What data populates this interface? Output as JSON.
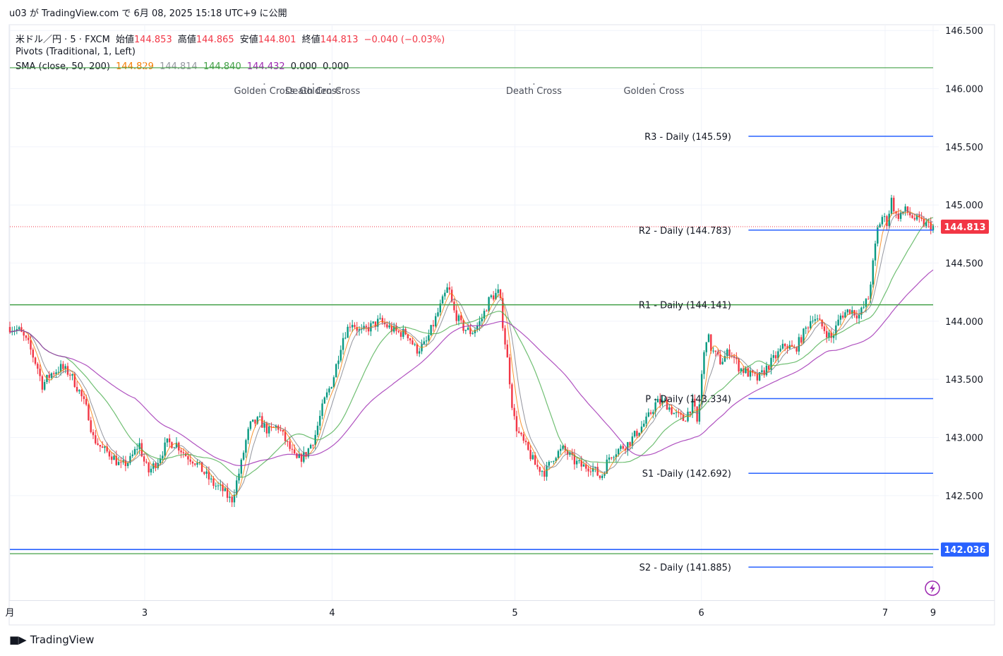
{
  "header": {
    "publisher_line": "u03 が TradingView.com で 6月 08, 2025 15:18 UTC+9 に公開"
  },
  "legend": {
    "symbol": "米ドル／円 · 5 · FXCM",
    "open_label": "始値",
    "open_value": "144.853",
    "high_label": "高値",
    "high_value": "144.865",
    "low_label": "安値",
    "low_value": "144.801",
    "close_label": "終値",
    "close_value": "144.813",
    "change": "−0.040 (−0.03%)",
    "pivots": "Pivots (Traditional, 1, Left)",
    "sma_label": "SMA (close, 50, 200)",
    "sma_values": [
      "144.829",
      "144.814",
      "144.840",
      "144.432",
      "0.000",
      "0.000"
    ]
  },
  "colors": {
    "up": "#089981",
    "down": "#f23645",
    "sma_fast": "#f57c00",
    "sma_slow": "#787b86",
    "sma50": "#4caf50",
    "sma200": "#9c27b0",
    "pivot_blue": "#2962ff",
    "pivot_green": "#43a047",
    "price_tag": "#f23645"
  },
  "footer": {
    "brand": "TradingView",
    "logo_icon": "tradingview-logo-icon"
  },
  "chart_data": {
    "type": "candlestick",
    "instrument": "米ドル／円 · 5 · FXCM",
    "ylim": [
      141.6,
      146.55
    ],
    "y_ticks": [
      "146.500",
      "146.000",
      "145.500",
      "145.000",
      "144.500",
      "144.000",
      "143.500",
      "143.000",
      "142.500"
    ],
    "x_ticks": [
      {
        "label": "月",
        "x": 0
      },
      {
        "label": "3",
        "x": 0.146
      },
      {
        "label": "4",
        "x": 0.349
      },
      {
        "label": "5",
        "x": 0.547
      },
      {
        "label": "6",
        "x": 0.749
      },
      {
        "label": "7",
        "x": 0.948
      },
      {
        "label": "9",
        "x": 1.0
      }
    ],
    "last_price": 144.813,
    "last_price_label": "144.813",
    "level_label": "142.036",
    "level_value": 142.036,
    "price_path": [
      [
        0,
        143.95
      ],
      [
        0.01,
        143.92
      ],
      [
        0.02,
        143.8
      ],
      [
        0.03,
        143.6
      ],
      [
        0.035,
        143.45
      ],
      [
        0.045,
        143.55
      ],
      [
        0.055,
        143.6
      ],
      [
        0.065,
        143.55
      ],
      [
        0.075,
        143.4
      ],
      [
        0.085,
        143.2
      ],
      [
        0.09,
        143.0
      ],
      [
        0.1,
        142.9
      ],
      [
        0.11,
        142.85
      ],
      [
        0.12,
        142.75
      ],
      [
        0.13,
        142.8
      ],
      [
        0.14,
        142.95
      ],
      [
        0.145,
        142.8
      ],
      [
        0.15,
        142.7
      ],
      [
        0.16,
        142.8
      ],
      [
        0.17,
        142.95
      ],
      [
        0.18,
        142.95
      ],
      [
        0.19,
        142.85
      ],
      [
        0.2,
        142.8
      ],
      [
        0.21,
        142.7
      ],
      [
        0.22,
        142.6
      ],
      [
        0.23,
        142.55
      ],
      [
        0.24,
        142.45
      ],
      [
        0.25,
        142.75
      ],
      [
        0.255,
        142.95
      ],
      [
        0.26,
        143.1
      ],
      [
        0.27,
        143.15
      ],
      [
        0.28,
        143.05
      ],
      [
        0.29,
        143.1
      ],
      [
        0.3,
        142.95
      ],
      [
        0.31,
        142.8
      ],
      [
        0.32,
        142.85
      ],
      [
        0.33,
        143.0
      ],
      [
        0.34,
        143.3
      ],
      [
        0.35,
        143.5
      ],
      [
        0.36,
        143.85
      ],
      [
        0.37,
        144.0
      ],
      [
        0.38,
        143.9
      ],
      [
        0.39,
        143.95
      ],
      [
        0.4,
        144.0
      ],
      [
        0.41,
        143.95
      ],
      [
        0.42,
        143.9
      ],
      [
        0.43,
        143.9
      ],
      [
        0.44,
        143.75
      ],
      [
        0.45,
        143.8
      ],
      [
        0.46,
        144.0
      ],
      [
        0.47,
        144.2
      ],
      [
        0.475,
        144.3
      ],
      [
        0.48,
        144.1
      ],
      [
        0.49,
        143.95
      ],
      [
        0.5,
        143.9
      ],
      [
        0.51,
        144.0
      ],
      [
        0.52,
        144.2
      ],
      [
        0.53,
        144.25
      ],
      [
        0.535,
        143.9
      ],
      [
        0.54,
        143.6
      ],
      [
        0.545,
        143.2
      ],
      [
        0.55,
        143.05
      ],
      [
        0.56,
        142.9
      ],
      [
        0.57,
        142.75
      ],
      [
        0.58,
        142.7
      ],
      [
        0.59,
        142.85
      ],
      [
        0.6,
        142.9
      ],
      [
        0.61,
        142.8
      ],
      [
        0.62,
        142.75
      ],
      [
        0.63,
        142.75
      ],
      [
        0.64,
        142.65
      ],
      [
        0.65,
        142.85
      ],
      [
        0.66,
        142.9
      ],
      [
        0.67,
        142.95
      ],
      [
        0.68,
        143.05
      ],
      [
        0.69,
        143.15
      ],
      [
        0.7,
        143.3
      ],
      [
        0.71,
        143.3
      ],
      [
        0.72,
        143.2
      ],
      [
        0.73,
        143.15
      ],
      [
        0.74,
        143.3
      ],
      [
        0.745,
        143.1
      ],
      [
        0.75,
        143.6
      ],
      [
        0.755,
        143.9
      ],
      [
        0.76,
        143.75
      ],
      [
        0.77,
        143.65
      ],
      [
        0.78,
        143.75
      ],
      [
        0.79,
        143.6
      ],
      [
        0.8,
        143.55
      ],
      [
        0.81,
        143.5
      ],
      [
        0.82,
        143.6
      ],
      [
        0.83,
        143.7
      ],
      [
        0.84,
        143.8
      ],
      [
        0.85,
        143.75
      ],
      [
        0.86,
        143.9
      ],
      [
        0.87,
        144.05
      ],
      [
        0.88,
        143.95
      ],
      [
        0.89,
        143.85
      ],
      [
        0.9,
        144.05
      ],
      [
        0.91,
        144.1
      ],
      [
        0.92,
        144.05
      ],
      [
        0.93,
        144.2
      ],
      [
        0.935,
        144.5
      ],
      [
        0.94,
        144.8
      ],
      [
        0.945,
        144.9
      ],
      [
        0.95,
        144.85
      ],
      [
        0.955,
        145.05
      ],
      [
        0.96,
        144.9
      ],
      [
        0.97,
        144.95
      ],
      [
        0.98,
        144.88
      ],
      [
        0.99,
        144.84
      ],
      [
        1.0,
        144.813
      ]
    ],
    "sma_fast_series": "SMA (close, 50, 200) fast",
    "sma_slow_series": "SMA (close, 50, 200) slow",
    "pivot_levels": [
      {
        "label": "R3 - Daily (145.59)",
        "value": 145.59,
        "start": 0.8
      },
      {
        "label": "R2 - Daily (144.783)",
        "value": 144.783,
        "start": 0.8
      },
      {
        "label": "R1 - Daily (144.141)",
        "value": 144.141,
        "start": 0
      },
      {
        "label": "P - Daily (143.334)",
        "value": 143.334,
        "start": 0.8
      },
      {
        "label": "S1 -Daily (142.692)",
        "value": 142.692,
        "start": 0.8
      },
      {
        "label": "S2 - Daily (141.885)",
        "value": 141.885,
        "start": 0.8
      }
    ],
    "horizontal_lines": [
      146.18,
      142.036,
      142.0
    ],
    "annotations": [
      {
        "label": "Golden Cross",
        "x": 0.245
      },
      {
        "label": "Death Cross",
        "x": 0.298
      },
      {
        "label": "Golden Cross",
        "x": 0.316
      },
      {
        "label": "Death Cross",
        "x": 0.537
      },
      {
        "label": "Golden Cross",
        "x": 0.667
      }
    ]
  }
}
